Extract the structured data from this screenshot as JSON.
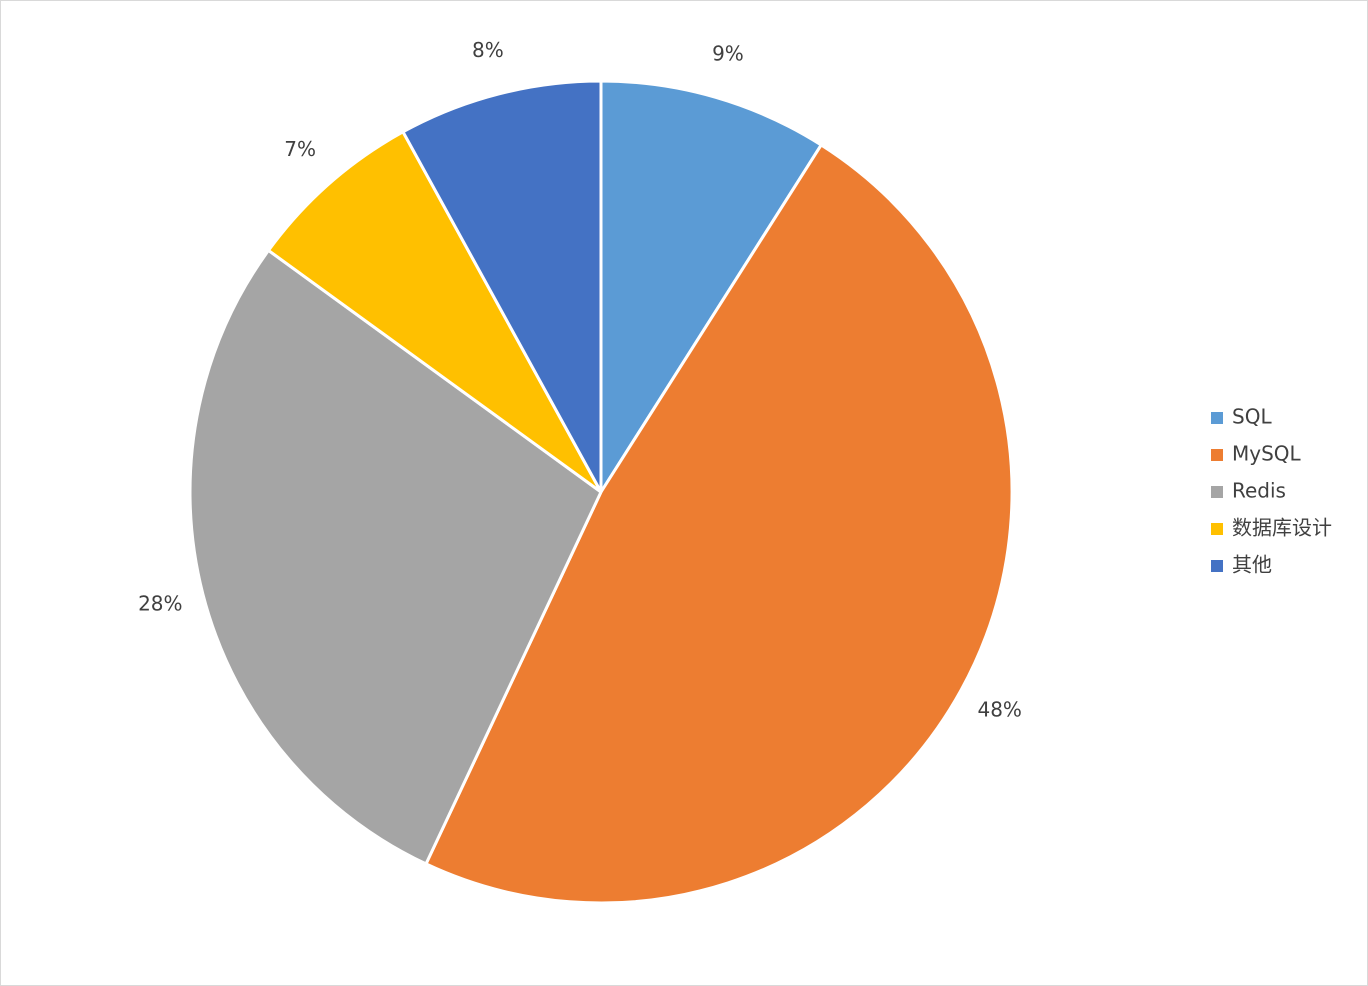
{
  "chart_data": {
    "type": "pie",
    "categories": [
      "SQL",
      "MySQL",
      "Redis",
      "数据库设计",
      "其他"
    ],
    "values": [
      9,
      48,
      28,
      7,
      8
    ],
    "value_labels": [
      "9%",
      "48%",
      "28%",
      "7%",
      "8%"
    ],
    "colors": [
      "#5b9bd5",
      "#ed7d31",
      "#a5a5a5",
      "#ffc000",
      "#4472c4"
    ],
    "legend": "right"
  }
}
